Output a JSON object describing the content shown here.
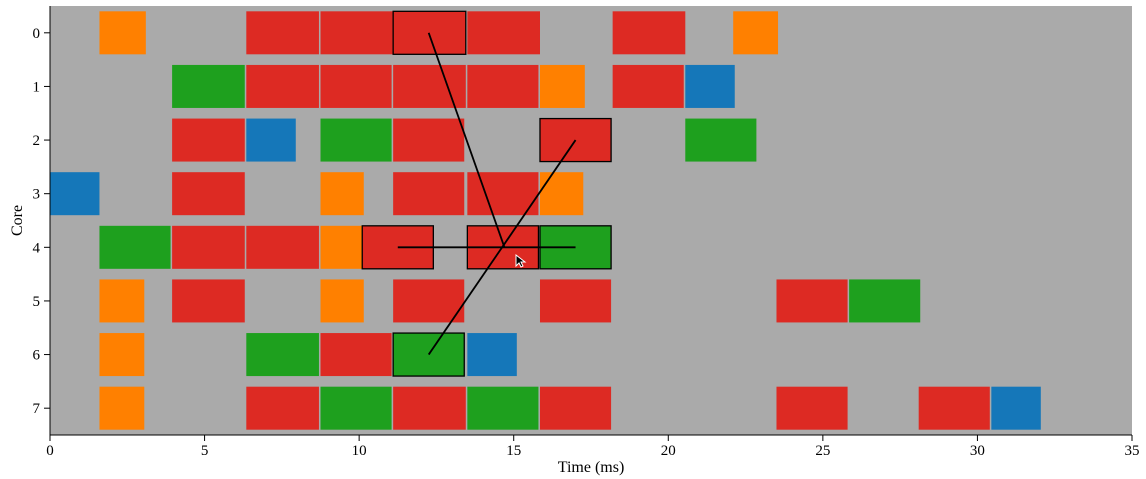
{
  "chart_data": {
    "type": "gantt",
    "xlabel": "Time (ms)",
    "ylabel": "Core",
    "xlim": [
      0,
      35
    ],
    "ylim": [
      7.5,
      -0.5
    ],
    "xticks": [
      0,
      5,
      10,
      15,
      20,
      25,
      30,
      35
    ],
    "yticks": [
      0,
      1,
      2,
      3,
      4,
      5,
      6,
      7
    ],
    "grid": false,
    "background": "#aaaaaa",
    "colors": {
      "red": "#dd2a23",
      "orange": "#ff8000",
      "green": "#1ea01e",
      "blue": "#1577b9"
    },
    "tasks": [
      {
        "core": 0,
        "start": 1.6,
        "end": 3.1,
        "color": "orange"
      },
      {
        "core": 0,
        "start": 6.35,
        "end": 8.7,
        "color": "red"
      },
      {
        "core": 0,
        "start": 8.75,
        "end": 11.1,
        "color": "red"
      },
      {
        "core": 0,
        "start": 11.1,
        "end": 13.45,
        "color": "red",
        "highlight": true
      },
      {
        "core": 0,
        "start": 13.5,
        "end": 15.85,
        "color": "red"
      },
      {
        "core": 0,
        "start": 18.2,
        "end": 20.55,
        "color": "red"
      },
      {
        "core": 0,
        "start": 22.1,
        "end": 23.55,
        "color": "orange"
      },
      {
        "core": 1,
        "start": 3.95,
        "end": 6.3,
        "color": "green"
      },
      {
        "core": 1,
        "start": 6.35,
        "end": 8.7,
        "color": "red"
      },
      {
        "core": 1,
        "start": 8.75,
        "end": 11.05,
        "color": "red"
      },
      {
        "core": 1,
        "start": 11.1,
        "end": 13.45,
        "color": "red"
      },
      {
        "core": 1,
        "start": 13.5,
        "end": 15.8,
        "color": "red"
      },
      {
        "core": 1,
        "start": 15.85,
        "end": 17.3,
        "color": "orange"
      },
      {
        "core": 1,
        "start": 18.2,
        "end": 20.5,
        "color": "red"
      },
      {
        "core": 1,
        "start": 20.55,
        "end": 22.15,
        "color": "blue"
      },
      {
        "core": 2,
        "start": 3.95,
        "end": 6.3,
        "color": "red"
      },
      {
        "core": 2,
        "start": 6.35,
        "end": 7.95,
        "color": "blue"
      },
      {
        "core": 2,
        "start": 8.75,
        "end": 11.05,
        "color": "green"
      },
      {
        "core": 2,
        "start": 11.1,
        "end": 13.4,
        "color": "red"
      },
      {
        "core": 2,
        "start": 15.85,
        "end": 18.15,
        "color": "red",
        "highlight": true
      },
      {
        "core": 2,
        "start": 20.55,
        "end": 22.85,
        "color": "green"
      },
      {
        "core": 3,
        "start": 0.0,
        "end": 1.6,
        "color": "blue"
      },
      {
        "core": 3,
        "start": 3.95,
        "end": 6.3,
        "color": "red"
      },
      {
        "core": 3,
        "start": 8.75,
        "end": 10.15,
        "color": "orange"
      },
      {
        "core": 3,
        "start": 11.1,
        "end": 13.4,
        "color": "red"
      },
      {
        "core": 3,
        "start": 13.5,
        "end": 15.8,
        "color": "red"
      },
      {
        "core": 3,
        "start": 15.85,
        "end": 17.25,
        "color": "orange"
      },
      {
        "core": 4,
        "start": 1.6,
        "end": 3.9,
        "color": "green"
      },
      {
        "core": 4,
        "start": 3.95,
        "end": 6.3,
        "color": "red"
      },
      {
        "core": 4,
        "start": 6.35,
        "end": 8.7,
        "color": "red"
      },
      {
        "core": 4,
        "start": 8.75,
        "end": 10.1,
        "color": "orange"
      },
      {
        "core": 4,
        "start": 10.1,
        "end": 12.4,
        "color": "red",
        "highlight": true
      },
      {
        "core": 4,
        "start": 13.5,
        "end": 15.8,
        "color": "red",
        "highlight": true
      },
      {
        "core": 4,
        "start": 15.85,
        "end": 18.15,
        "color": "green",
        "highlight": true
      },
      {
        "core": 5,
        "start": 1.6,
        "end": 3.05,
        "color": "orange"
      },
      {
        "core": 5,
        "start": 3.95,
        "end": 6.3,
        "color": "red"
      },
      {
        "core": 5,
        "start": 8.75,
        "end": 10.15,
        "color": "orange"
      },
      {
        "core": 5,
        "start": 11.1,
        "end": 13.4,
        "color": "red"
      },
      {
        "core": 5,
        "start": 15.85,
        "end": 18.15,
        "color": "red"
      },
      {
        "core": 5,
        "start": 23.5,
        "end": 25.8,
        "color": "red"
      },
      {
        "core": 5,
        "start": 25.85,
        "end": 28.15,
        "color": "green"
      },
      {
        "core": 6,
        "start": 1.6,
        "end": 3.05,
        "color": "orange"
      },
      {
        "core": 6,
        "start": 6.35,
        "end": 8.7,
        "color": "green"
      },
      {
        "core": 6,
        "start": 8.75,
        "end": 11.05,
        "color": "red"
      },
      {
        "core": 6,
        "start": 11.1,
        "end": 13.4,
        "color": "green",
        "highlight": true
      },
      {
        "core": 6,
        "start": 13.5,
        "end": 15.1,
        "color": "blue"
      },
      {
        "core": 7,
        "start": 1.6,
        "end": 3.05,
        "color": "orange"
      },
      {
        "core": 7,
        "start": 6.35,
        "end": 8.7,
        "color": "red"
      },
      {
        "core": 7,
        "start": 8.75,
        "end": 11.05,
        "color": "green"
      },
      {
        "core": 7,
        "start": 11.1,
        "end": 13.45,
        "color": "red"
      },
      {
        "core": 7,
        "start": 13.5,
        "end": 15.8,
        "color": "green"
      },
      {
        "core": 7,
        "start": 15.85,
        "end": 18.15,
        "color": "red"
      },
      {
        "core": 7,
        "start": 23.5,
        "end": 25.8,
        "color": "red"
      },
      {
        "core": 7,
        "start": 28.1,
        "end": 30.4,
        "color": "red"
      },
      {
        "core": 7,
        "start": 30.45,
        "end": 32.05,
        "color": "blue"
      }
    ],
    "links": [
      {
        "from": [
          12.25,
          0
        ],
        "to": [
          14.7,
          4
        ]
      },
      {
        "from": [
          12.25,
          6
        ],
        "to": [
          17.0,
          2
        ]
      },
      {
        "from": [
          11.25,
          4
        ],
        "to": [
          17.0,
          4
        ]
      }
    ]
  }
}
